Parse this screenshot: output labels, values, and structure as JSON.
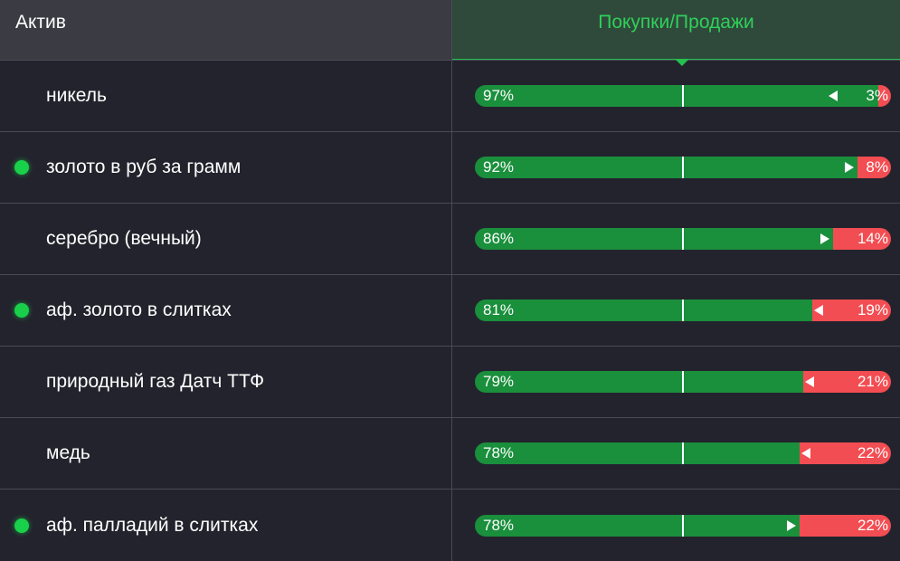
{
  "header": {
    "asset_label": "Актив",
    "ratio_label": "Покупки/Продажи"
  },
  "colors": {
    "buy": "#1a8f3c",
    "sell": "#f24d52",
    "accent": "#2fd05a",
    "active_dot": "#19d04a"
  },
  "rows": [
    {
      "name": "никель",
      "active": false,
      "buy": 97,
      "sell": 3,
      "buy_label": "97%",
      "sell_label": "3%",
      "arrow": "left"
    },
    {
      "name": "золото в руб за грамм",
      "active": true,
      "buy": 92,
      "sell": 8,
      "buy_label": "92%",
      "sell_label": "8%",
      "arrow": "right"
    },
    {
      "name": "серебро (вечный)",
      "active": false,
      "buy": 86,
      "sell": 14,
      "buy_label": "86%",
      "sell_label": "14%",
      "arrow": "right"
    },
    {
      "name": "аф. золото в слитках",
      "active": true,
      "buy": 81,
      "sell": 19,
      "buy_label": "81%",
      "sell_label": "19%",
      "arrow": "left"
    },
    {
      "name": "природный газ Датч ТТФ",
      "active": false,
      "buy": 79,
      "sell": 21,
      "buy_label": "79%",
      "sell_label": "21%",
      "arrow": "left"
    },
    {
      "name": "медь",
      "active": false,
      "buy": 78,
      "sell": 22,
      "buy_label": "78%",
      "sell_label": "22%",
      "arrow": "left"
    },
    {
      "name": "аф. палладий в слитках",
      "active": true,
      "buy": 78,
      "sell": 22,
      "buy_label": "78%",
      "sell_label": "22%",
      "arrow": "right"
    }
  ]
}
